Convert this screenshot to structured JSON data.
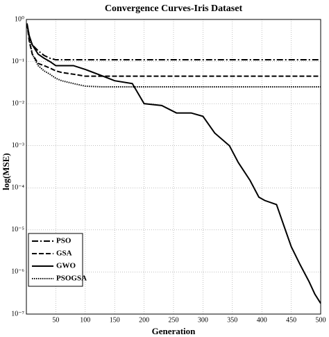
{
  "chart_data": {
    "type": "line",
    "title": "Convergence Curves-Iris Dataset",
    "xlabel": "Generation",
    "ylabel": "log(MSE)",
    "x": [
      1,
      5,
      10,
      20,
      30,
      40,
      50,
      60,
      80,
      100,
      130,
      150,
      180,
      200,
      230,
      255,
      280,
      300,
      320,
      345,
      360,
      380,
      395,
      405,
      425,
      440,
      450,
      465,
      480,
      490,
      500
    ],
    "series": [
      {
        "name": "PSO",
        "color": "#000000",
        "dash": "dashdot",
        "values": [
          0.8,
          0.4,
          0.25,
          0.18,
          0.14,
          0.12,
          0.11,
          0.11,
          0.11,
          0.11,
          0.11,
          0.11,
          0.11,
          0.11,
          0.11,
          0.11,
          0.11,
          0.11,
          0.11,
          0.11,
          0.11,
          0.11,
          0.11,
          0.11,
          0.11,
          0.11,
          0.11,
          0.11,
          0.11,
          0.11,
          0.11
        ]
      },
      {
        "name": "GSA",
        "color": "#000000",
        "dash": "dashed",
        "values": [
          0.8,
          0.3,
          0.15,
          0.09,
          0.08,
          0.07,
          0.06,
          0.055,
          0.05,
          0.045,
          0.045,
          0.045,
          0.045,
          0.045,
          0.045,
          0.045,
          0.045,
          0.045,
          0.045,
          0.045,
          0.045,
          0.045,
          0.045,
          0.045,
          0.045,
          0.045,
          0.045,
          0.045,
          0.045,
          0.045,
          0.045
        ]
      },
      {
        "name": "GWO",
        "color": "#000000",
        "dash": "solid",
        "values": [
          0.8,
          0.4,
          0.25,
          0.15,
          0.12,
          0.1,
          0.08,
          0.08,
          0.08,
          0.065,
          0.045,
          0.035,
          0.03,
          0.01,
          0.009,
          0.006,
          0.006,
          0.005,
          0.002,
          0.001,
          0.0004,
          0.00015,
          6e-05,
          5e-05,
          4e-05,
          1e-05,
          4e-06,
          1.5e-06,
          6e-07,
          3e-07,
          1.8e-07
        ]
      },
      {
        "name": "PSOGSA",
        "color": "#000000",
        "dash": "dotted",
        "values": [
          0.8,
          0.35,
          0.15,
          0.08,
          0.06,
          0.05,
          0.04,
          0.035,
          0.03,
          0.026,
          0.025,
          0.025,
          0.025,
          0.025,
          0.025,
          0.025,
          0.025,
          0.025,
          0.025,
          0.025,
          0.025,
          0.025,
          0.025,
          0.025,
          0.025,
          0.025,
          0.025,
          0.025,
          0.025,
          0.025,
          0.025
        ]
      }
    ],
    "xlim": [
      0,
      500
    ],
    "xticks": [
      50,
      100,
      150,
      200,
      250,
      300,
      350,
      400,
      450,
      500
    ],
    "ylim": [
      1e-07,
      1
    ],
    "ylog": true,
    "yticks": [
      {
        "value": 1e-07,
        "label": "10⁻⁷"
      },
      {
        "value": 1e-06,
        "label": "10⁻⁶"
      },
      {
        "value": 1e-05,
        "label": "10⁻⁵"
      },
      {
        "value": 0.0001,
        "label": "10⁻⁴"
      },
      {
        "value": 0.001,
        "label": "10⁻³"
      },
      {
        "value": 0.01,
        "label": "10⁻²"
      },
      {
        "value": 0.1,
        "label": "10⁻¹"
      },
      {
        "value": 1,
        "label": "10⁰"
      }
    ],
    "grid": true,
    "legend": "lower left"
  }
}
